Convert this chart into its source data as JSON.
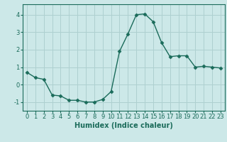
{
  "x": [
    0,
    1,
    2,
    3,
    4,
    5,
    6,
    7,
    8,
    9,
    10,
    11,
    12,
    13,
    14,
    15,
    16,
    17,
    18,
    19,
    20,
    21,
    22,
    23
  ],
  "y": [
    0.7,
    0.4,
    0.3,
    -0.6,
    -0.65,
    -0.9,
    -0.9,
    -1.0,
    -1.0,
    -0.85,
    -0.4,
    1.9,
    2.9,
    4.0,
    4.05,
    3.6,
    2.4,
    1.6,
    1.65,
    1.65,
    1.0,
    1.05,
    1.0,
    0.95
  ],
  "line_color": "#1a6b5a",
  "marker": "D",
  "marker_size": 2.5,
  "bg_color": "#cce8e8",
  "grid_color": "#aed0d0",
  "xlabel": "Humidex (Indice chaleur)",
  "yticks": [
    -1,
    0,
    1,
    2,
    3,
    4
  ],
  "xticks": [
    0,
    1,
    2,
    3,
    4,
    5,
    6,
    7,
    8,
    9,
    10,
    11,
    12,
    13,
    14,
    15,
    16,
    17,
    18,
    19,
    20,
    21,
    22,
    23
  ],
  "xlim": [
    -0.5,
    23.5
  ],
  "ylim": [
    -1.5,
    4.6
  ],
  "label_fontsize": 7,
  "tick_fontsize": 6
}
